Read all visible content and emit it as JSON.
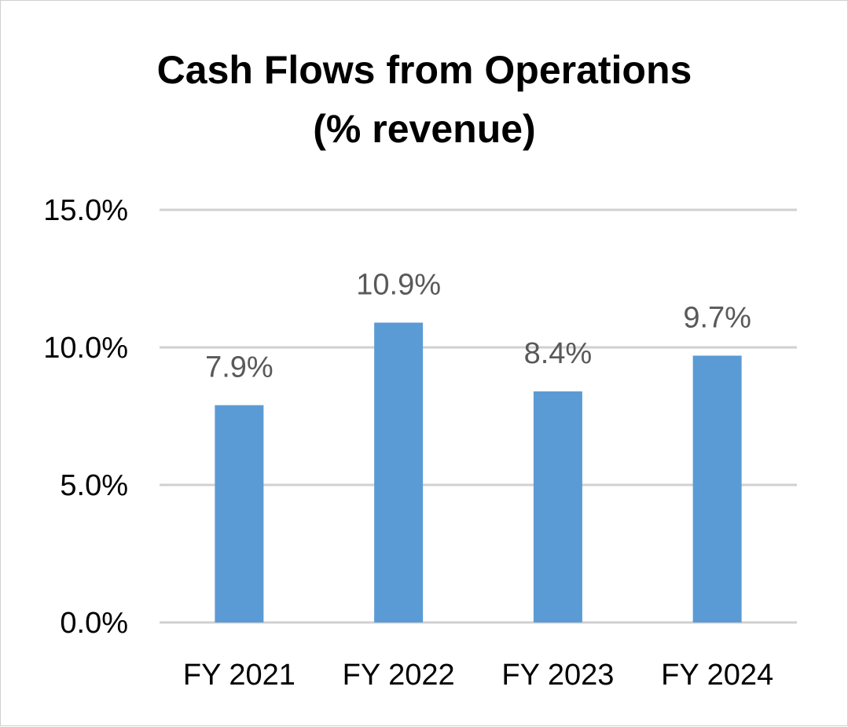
{
  "chart_data": {
    "type": "bar",
    "title": "Cash Flows from Operations (% revenue)",
    "title_lines": [
      "Cash Flows from Operations",
      "(% revenue)"
    ],
    "categories": [
      "FY 2021",
      "FY 2022",
      "FY 2023",
      "FY 2024"
    ],
    "values": [
      7.9,
      10.9,
      8.4,
      9.7
    ],
    "data_labels": [
      "7.9%",
      "10.9%",
      "8.4%",
      "9.7%"
    ],
    "y_ticks": [
      0,
      5,
      10,
      15
    ],
    "y_tick_labels": [
      "0.0%",
      "5.0%",
      "10.0%",
      "15.0%"
    ],
    "ylim": [
      0,
      15
    ],
    "xlabel": "",
    "ylabel": "",
    "grid": true,
    "legend": "none",
    "bar_color": "#5B9BD5",
    "gridline_color": "#D0D0D0",
    "label_color": "#595959"
  }
}
